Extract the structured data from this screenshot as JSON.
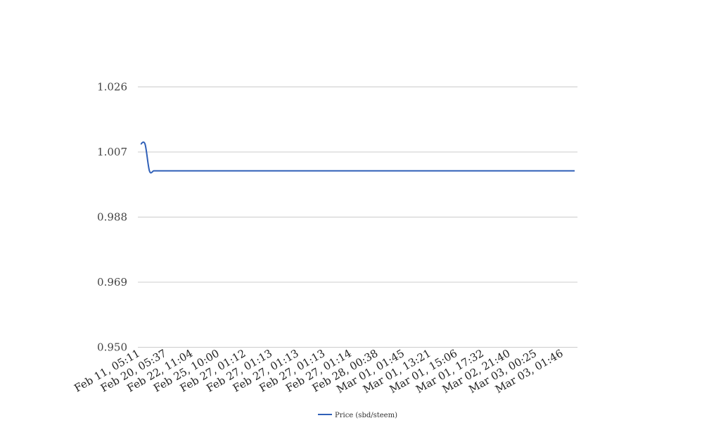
{
  "chart_data": {
    "type": "line",
    "title": "",
    "xlabel": "",
    "ylabel": "",
    "ylim": [
      0.95,
      1.026
    ],
    "yticks": [
      "0.950",
      "0.969",
      "0.988",
      "1.007",
      "1.026"
    ],
    "grid": true,
    "legend_position": "bottom-center",
    "x_tick_labels": [
      "Feb 11, 05:11",
      "Feb 20, 05:37",
      "Feb 22, 11:04",
      "Feb 25, 10:00",
      "Feb 27, 01:12",
      "Feb 27, 01:13",
      "Feb 27, 01:13",
      "Feb 27, 01:13",
      "Feb 27, 01:14",
      "Feb 28, 00:38",
      "Mar 01, 01:45",
      "Mar 01, 13:21",
      "Mar 01, 15:06",
      "Mar 01, 17:32",
      "Mar 02, 21:40",
      "Mar 03, 00:25",
      "Mar 03, 01:46"
    ],
    "series": [
      {
        "name": "Price (sbd/steem)",
        "color": "#3060b8",
        "values": [
          1.0093,
          1.0093,
          1.0015,
          1.0015,
          1.0015,
          1.0015,
          1.0015,
          1.0015,
          1.0015,
          1.0015,
          1.0015,
          1.0015,
          1.0015,
          1.0015,
          1.0015,
          1.0015,
          1.0015,
          1.0015,
          1.0015,
          1.0015,
          1.0015,
          1.0015,
          1.0015,
          1.0015,
          1.0015,
          1.0015,
          1.0015,
          1.0015,
          1.0015,
          1.0015,
          1.0015,
          1.0015,
          1.0015,
          1.0015,
          1.0015,
          1.0015,
          1.0015,
          1.0015,
          1.0015,
          1.0015,
          1.0015,
          1.0015,
          1.0015,
          1.0015,
          1.0015,
          1.0015,
          1.0015,
          1.0015,
          1.0015,
          1.0015,
          1.0015,
          1.0015,
          1.0015,
          1.0015,
          1.0015,
          1.0015,
          1.0015,
          1.0015,
          1.0015,
          1.0015,
          1.0015,
          1.0015,
          1.0015,
          1.0015,
          1.0015,
          1.0015,
          1.0015,
          1.0015,
          1.0015,
          1.0015,
          1.0015,
          1.0015,
          1.0015,
          1.0015,
          1.0015,
          1.0015,
          1.0015,
          1.0015,
          1.0015,
          1.0015,
          1.0015,
          1.0015,
          1.0015,
          1.0015,
          1.0015,
          1.0015,
          1.0015,
          1.0015,
          1.0015,
          1.0015,
          1.0015,
          1.0015,
          1.0015,
          1.0015,
          1.0015,
          1.0015,
          1.0015,
          1.0015,
          1.0015,
          1.0015
        ]
      }
    ]
  }
}
